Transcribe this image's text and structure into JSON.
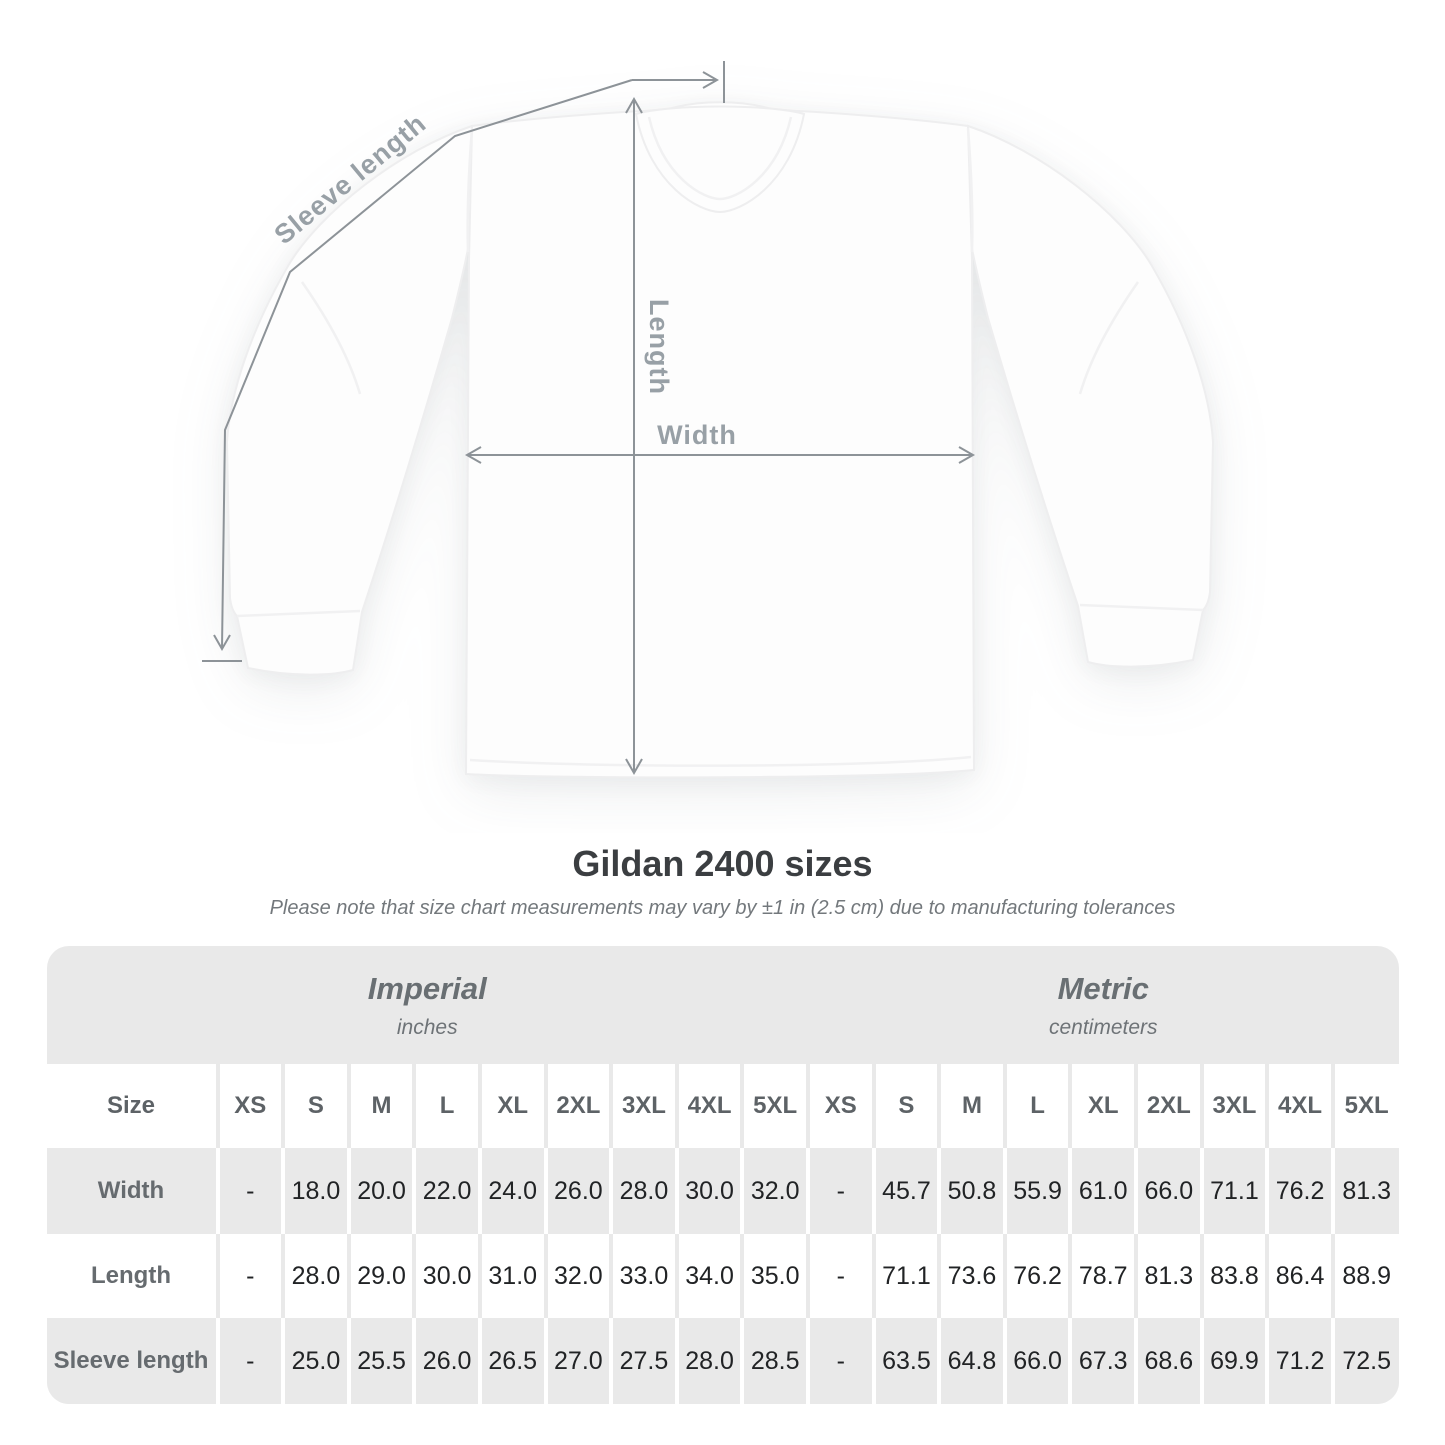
{
  "figure": {
    "labels": {
      "sleeve": "Sleeve length",
      "length": "Length",
      "width": "Width"
    },
    "arrow_color": "#8d9398",
    "label_color": "#98a0a6"
  },
  "heading": {
    "title": "Gildan 2400 sizes",
    "subtitle": "Please note that size chart measurements may vary by ±1 in (2.5 cm) due to manufacturing tolerances"
  },
  "table": {
    "groups": [
      {
        "name": "Imperial",
        "unit": "inches"
      },
      {
        "name": "Metric",
        "unit": "centimeters"
      }
    ],
    "size_label": "Size",
    "sizes": [
      "XS",
      "S",
      "M",
      "L",
      "XL",
      "2XL",
      "3XL",
      "4XL",
      "5XL"
    ],
    "rows": [
      {
        "label": "Width",
        "imperial": [
          "-",
          "18.0",
          "20.0",
          "22.0",
          "24.0",
          "26.0",
          "28.0",
          "30.0",
          "32.0"
        ],
        "metric": [
          "-",
          "45.7",
          "50.8",
          "55.9",
          "61.0",
          "66.0",
          "71.1",
          "76.2",
          "81.3"
        ]
      },
      {
        "label": "Length",
        "imperial": [
          "-",
          "28.0",
          "29.0",
          "30.0",
          "31.0",
          "32.0",
          "33.0",
          "34.0",
          "35.0"
        ],
        "metric": [
          "-",
          "71.1",
          "73.6",
          "76.2",
          "78.7",
          "81.3",
          "83.8",
          "86.4",
          "88.9"
        ]
      },
      {
        "label": "Sleeve length",
        "imperial": [
          "-",
          "25.0",
          "25.5",
          "26.0",
          "26.5",
          "27.0",
          "27.5",
          "28.0",
          "28.5"
        ],
        "metric": [
          "-",
          "63.5",
          "64.8",
          "66.0",
          "67.3",
          "68.6",
          "69.9",
          "71.2",
          "72.5"
        ]
      }
    ],
    "colors": {
      "container_bg": "#e9e9e9",
      "row_alt_bg": "#ffffff"
    }
  }
}
